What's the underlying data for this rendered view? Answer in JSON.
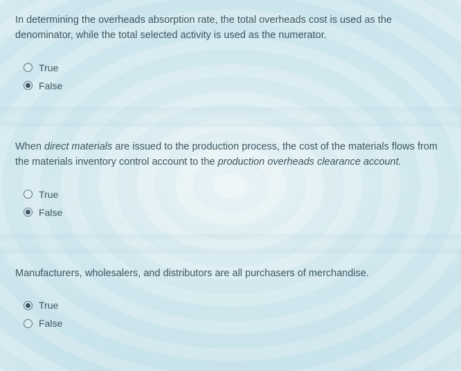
{
  "questions": [
    {
      "text_parts": [
        {
          "t": "In determining the overheads absorption rate, the total overheads cost is used as the denominator, while the total selected activity is used as the numerator.",
          "italic": false
        }
      ],
      "options": [
        {
          "label": "True",
          "selected": false
        },
        {
          "label": "False",
          "selected": true
        }
      ]
    },
    {
      "text_parts": [
        {
          "t": "When ",
          "italic": false
        },
        {
          "t": "direct materials",
          "italic": true
        },
        {
          "t": " are issued to the production process, the cost of the materials flows from the materials inventory control account to the ",
          "italic": false
        },
        {
          "t": "production overheads clearance account.",
          "italic": true
        }
      ],
      "options": [
        {
          "label": "True",
          "selected": false
        },
        {
          "label": "False",
          "selected": true
        }
      ]
    },
    {
      "text_parts": [
        {
          "t": "Manufacturers, wholesalers, and distributors are all purchasers of merchandise.",
          "italic": false
        }
      ],
      "options": [
        {
          "label": "True",
          "selected": true
        },
        {
          "label": "False",
          "selected": false
        }
      ]
    }
  ],
  "colors": {
    "text": "#3e5560",
    "radio_border": "#5a7482",
    "bg_tint": "#d5e9ee"
  }
}
